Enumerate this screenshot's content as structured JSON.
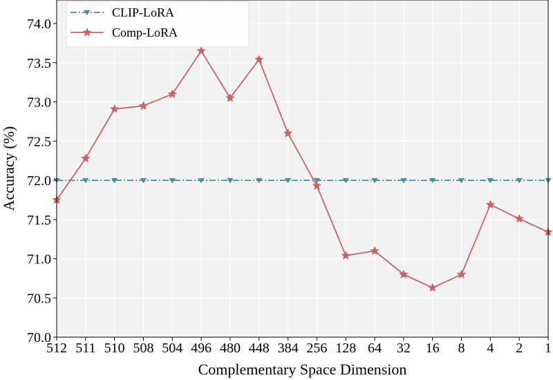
{
  "chart_data": {
    "type": "line",
    "title": "",
    "xlabel": "Complementary Space Dimension",
    "ylabel": "Accuracy (%)",
    "categories": [
      "512",
      "511",
      "510",
      "508",
      "504",
      "496",
      "480",
      "448",
      "384",
      "256",
      "128",
      "64",
      "32",
      "16",
      "8",
      "4",
      "2",
      "1"
    ],
    "ylim": [
      70.0,
      74.3
    ],
    "yticks": [
      "70.0",
      "70.5",
      "71.0",
      "71.5",
      "72.0",
      "72.5",
      "73.0",
      "73.5",
      "74.0"
    ],
    "grid": true,
    "legend_position": "top-left",
    "series": [
      {
        "name": "CLIP-LoRA",
        "color": "#4a8c9e",
        "line_style": "dashdot",
        "marker": "triangle-down",
        "values": [
          72.0,
          72.0,
          72.0,
          72.0,
          72.0,
          72.0,
          72.0,
          72.0,
          72.0,
          72.0,
          72.0,
          72.0,
          72.0,
          72.0,
          72.0,
          72.0,
          72.0,
          72.0
        ]
      },
      {
        "name": "Comp-LoRA",
        "color": "#c86464",
        "line_style": "solid",
        "marker": "star",
        "values": [
          71.75,
          72.28,
          72.91,
          72.95,
          73.1,
          73.65,
          73.05,
          73.54,
          72.6,
          71.93,
          71.04,
          71.1,
          70.8,
          70.63,
          70.8,
          71.69,
          71.51,
          71.34
        ]
      }
    ]
  }
}
